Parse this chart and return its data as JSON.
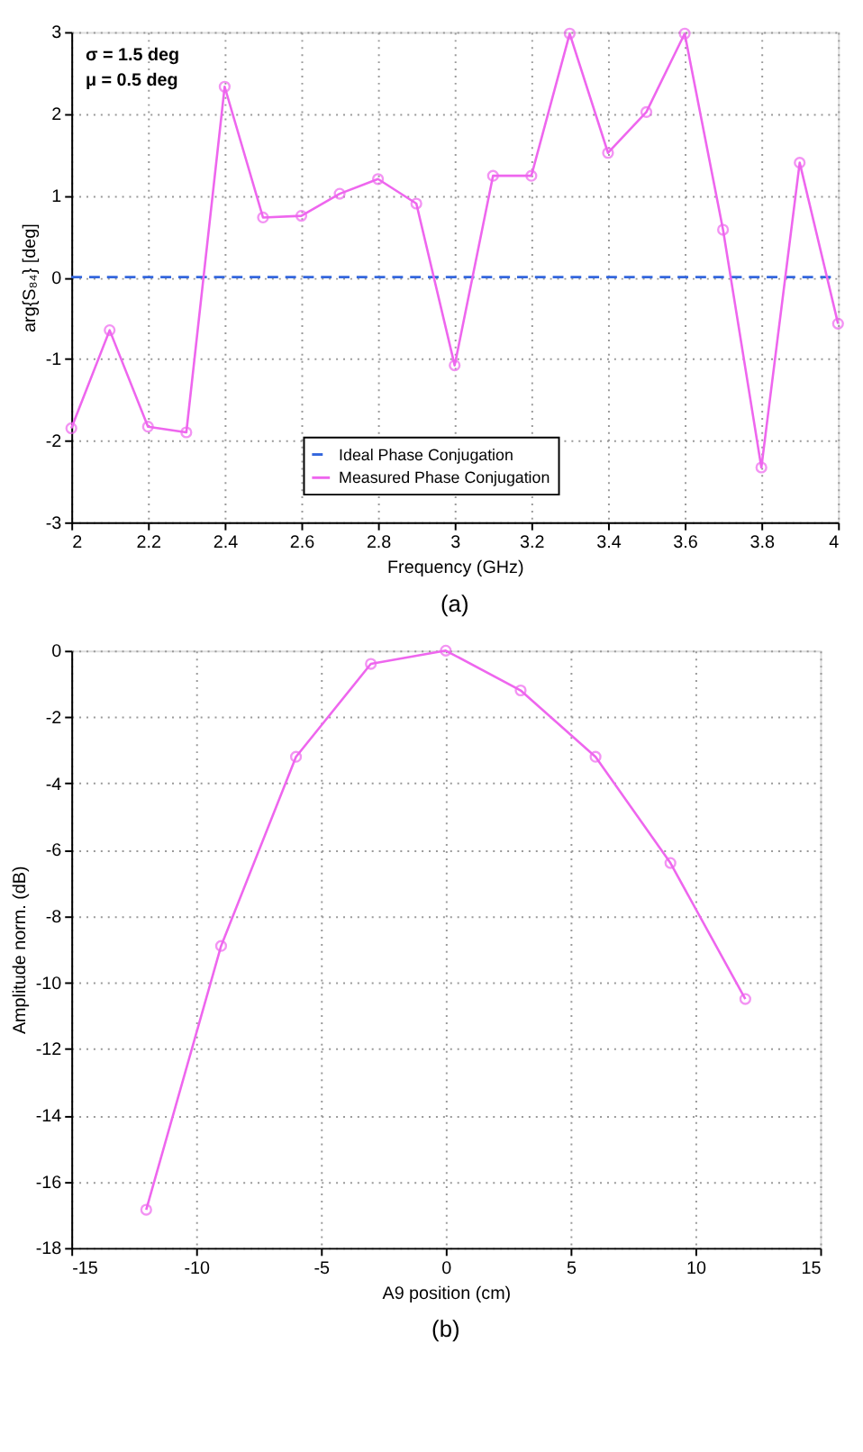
{
  "chart_data": [
    {
      "type": "line",
      "xlabel": "Frequency (GHz)",
      "ylabel": "arg{S₈₄} [deg]",
      "x": [
        2.0,
        2.1,
        2.2,
        2.3,
        2.4,
        2.5,
        2.6,
        2.7,
        2.8,
        2.9,
        3.0,
        3.1,
        3.2,
        3.3,
        3.4,
        3.5,
        3.6,
        3.7,
        3.8,
        3.9,
        4.0
      ],
      "series": [
        {
          "name": "Ideal Phase Conjugation",
          "color": "#3366dd",
          "x": [
            2.0,
            4.0
          ],
          "values": [
            0,
            0
          ],
          "line_style": "dashed",
          "marker": "none"
        },
        {
          "name": "Measured Phase Conjugation",
          "color": "#ee66ee",
          "values": [
            -1.85,
            -0.65,
            -1.83,
            -1.9,
            2.33,
            0.73,
            0.75,
            1.02,
            1.2,
            0.9,
            -1.08,
            1.24,
            1.24,
            2.98,
            1.52,
            2.02,
            2.98,
            0.58,
            -2.33,
            1.4,
            -0.57
          ],
          "marker": "circle"
        }
      ],
      "xlim": [
        2,
        4
      ],
      "xticks": [
        2,
        2.2,
        2.4,
        2.6,
        2.8,
        3,
        3.2,
        3.4,
        3.6,
        3.8,
        4
      ],
      "ylim": [
        -3,
        3
      ],
      "yticks": [
        -3,
        -2,
        -1,
        0,
        1,
        2,
        3
      ],
      "grid": true,
      "legend": "bottom",
      "line_style": "solid",
      "marker": "circle",
      "annotations": [
        "σ = 1.5 deg",
        "μ = 0.5 deg",
        "(a)"
      ]
    },
    {
      "type": "line",
      "xlabel": "A9 position (cm)",
      "ylabel": "Amplitude norm. (dB)",
      "x": [
        -12,
        -9,
        -6,
        -3,
        0,
        3,
        6,
        9,
        12
      ],
      "series": [
        {
          "color": "#ee66ee",
          "values": [
            -16.85,
            -8.9,
            -3.2,
            -0.4,
            0,
            -1.2,
            -3.2,
            -6.4,
            -10.5
          ]
        }
      ],
      "xlim": [
        -15,
        15
      ],
      "xticks": [
        -15,
        -10,
        -5,
        0,
        5,
        10,
        15
      ],
      "ylim": [
        -18,
        0
      ],
      "yticks": [
        -18,
        -16,
        -14,
        -12,
        -10,
        -8,
        -6,
        -4,
        -2,
        0
      ],
      "grid": true,
      "legend": false,
      "line_style": "solid",
      "marker": "circle",
      "annotations": [
        "(b)"
      ]
    }
  ]
}
